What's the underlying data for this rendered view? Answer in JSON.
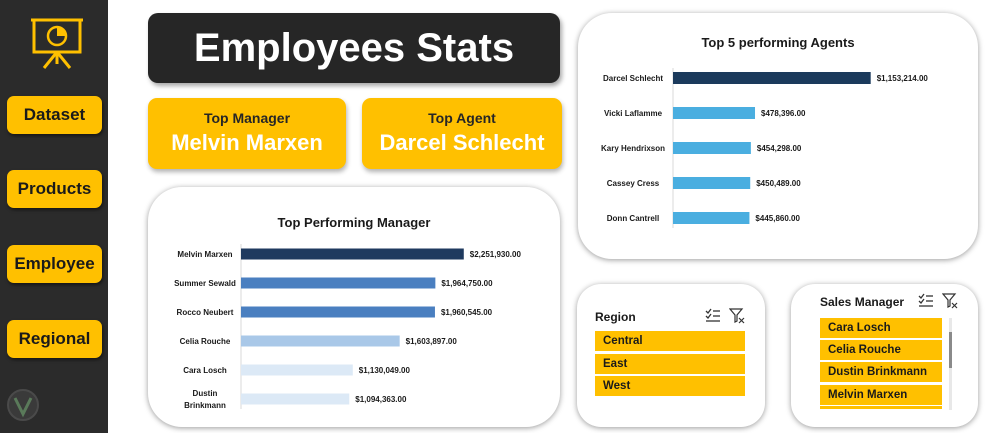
{
  "sidebar": {
    "nav": [
      {
        "label": "Dataset"
      },
      {
        "label": "Products"
      },
      {
        "label": "Employee"
      },
      {
        "label": "Regional"
      }
    ]
  },
  "header": {
    "title": "Employees Stats"
  },
  "kpis": {
    "top_manager": {
      "label": "Top Manager",
      "value": "Melvin Marxen"
    },
    "top_agent": {
      "label": "Top Agent",
      "value": "Darcel Schlecht"
    }
  },
  "colors": {
    "accent": "#ffc000",
    "dark": "#262626",
    "sidebar": "#2b2b2b"
  },
  "chart_data": [
    {
      "type": "bar",
      "orientation": "horizontal",
      "title": "Top 5 performing Agents",
      "categories": [
        "Darcel Schlecht",
        "Vicki Laflamme",
        "Kary Hendrixson",
        "Cassey Cress",
        "Donn Cantrell"
      ],
      "values": [
        1153214,
        478396,
        454298,
        450489,
        445860
      ],
      "data_labels": [
        "$1,153,214.00",
        "$478,396.00",
        "$454,298.00",
        "$450,489.00",
        "$445,860.00"
      ],
      "colors": [
        "#1b3a5c",
        "#4aaee0",
        "#4aaee0",
        "#4aaee0",
        "#4aaee0"
      ],
      "xlim": [
        0,
        1400000
      ],
      "grid": false
    },
    {
      "type": "bar",
      "orientation": "horizontal",
      "title": "Top Performing Manager",
      "categories": [
        "Melvin Marxen",
        "Summer Sewald",
        "Rocco Neubert",
        "Celia Rouche",
        "Cara Losch",
        "Dustin Brinkmann"
      ],
      "values": [
        2251930,
        1964750,
        1960545,
        1603897,
        1130049,
        1094363
      ],
      "data_labels": [
        "$2,251,930.00",
        "$1,964,750.00",
        "$1,960,545.00",
        "$1,603,897.00",
        "$1,130,049.00",
        "$1,094,363.00"
      ],
      "colors": [
        "#1f3a5f",
        "#4a7fc0",
        "#4a7fc0",
        "#a9c8e8",
        "#dce9f6",
        "#dce9f6"
      ],
      "xlim": [
        0,
        2800000
      ],
      "grid": false
    }
  ],
  "slicers": {
    "region": {
      "title": "Region",
      "items": [
        "Central",
        "East",
        "West"
      ]
    },
    "manager": {
      "title": "Sales Manager",
      "items": [
        "Cara Losch",
        "Celia Rouche",
        "Dustin Brinkmann",
        "Melvin Marxen"
      ]
    },
    "icons": [
      "multi-select-icon",
      "clear-filter-icon"
    ]
  }
}
